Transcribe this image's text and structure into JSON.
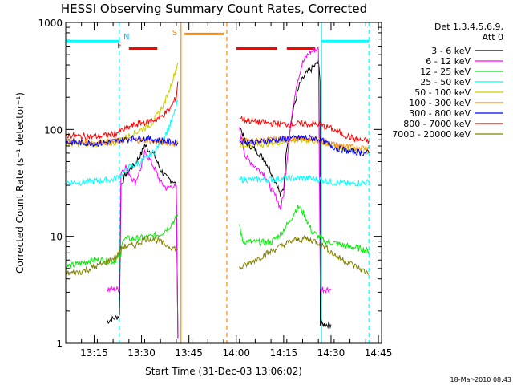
{
  "chart_data": {
    "type": "line",
    "title": "HESSI Observing Summary Count Rates, Corrected",
    "xlabel": "Start Time (31-Dec-03 13:06:02)",
    "ylabel": "Corrected Count Rate (s⁻¹ detector⁻¹)",
    "y_scale": "log",
    "ylim": [
      1,
      1000
    ],
    "xlim_minutes": [
      0,
      100
    ],
    "x_ticks": [
      {
        "m": 9,
        "label": "13:15"
      },
      {
        "m": 24,
        "label": "13:30"
      },
      {
        "m": 39,
        "label": "13:45"
      },
      {
        "m": 54,
        "label": "14:00"
      },
      {
        "m": 69,
        "label": "14:15"
      },
      {
        "m": 84,
        "label": "14:30"
      },
      {
        "m": 99,
        "label": "14:45"
      }
    ],
    "y_ticks": [
      {
        "v": 1,
        "label": "1"
      },
      {
        "v": 10,
        "label": "10"
      },
      {
        "v": 100,
        "label": "100"
      },
      {
        "v": 1000,
        "label": "1000"
      }
    ],
    "legend_header": [
      "Det 1,3,4,5,6,9,",
      "Att 0"
    ],
    "legend_position": "right",
    "series": [
      {
        "name": "3 - 6 keV",
        "color": "#000000",
        "segments": [
          [
            [
              13,
              1.6
            ],
            [
              17,
              1.8
            ],
            [
              17.5,
              30
            ],
            [
              19,
              38
            ],
            [
              22,
              48
            ],
            [
              24,
              60
            ],
            [
              25,
              72
            ],
            [
              26,
              65
            ],
            [
              28,
              58
            ],
            [
              30,
              42
            ],
            [
              32,
              35
            ],
            [
              34,
              33
            ],
            [
              35,
              30
            ],
            [
              35.5,
              1.1
            ]
          ],
          [
            [
              55,
              110
            ],
            [
              57,
              75
            ],
            [
              60,
              65
            ],
            [
              63,
              52
            ],
            [
              65,
              40
            ],
            [
              67,
              30
            ],
            [
              68,
              24
            ],
            [
              69,
              28
            ],
            [
              70,
              70
            ],
            [
              72,
              150
            ],
            [
              74,
              260
            ],
            [
              76,
              330
            ],
            [
              78,
              370
            ],
            [
              79,
              400
            ],
            [
              80,
              420
            ],
            [
              80.5,
              300
            ],
            [
              80.6,
              1.5
            ],
            [
              84,
              1.5
            ]
          ]
        ]
      },
      {
        "name": "6 - 12 keV",
        "color": "#ff00ff",
        "segments": [
          [
            [
              13,
              3.2
            ],
            [
              17,
              3.2
            ],
            [
              17.5,
              40
            ],
            [
              19,
              45
            ],
            [
              21,
              35
            ],
            [
              22,
              32
            ],
            [
              24,
              45
            ],
            [
              25,
              60
            ],
            [
              26,
              56
            ],
            [
              28,
              44
            ],
            [
              30,
              32
            ],
            [
              32,
              28
            ],
            [
              34,
              30
            ],
            [
              35,
              28
            ],
            [
              35.5,
              1.1
            ]
          ],
          [
            [
              55,
              100
            ],
            [
              57,
              55
            ],
            [
              60,
              45
            ],
            [
              63,
              38
            ],
            [
              65,
              28
            ],
            [
              67,
              22
            ],
            [
              68,
              18
            ],
            [
              69,
              25
            ],
            [
              71,
              100
            ],
            [
              73,
              260
            ],
            [
              75,
              420
            ],
            [
              77,
              520
            ],
            [
              79,
              560
            ],
            [
              80,
              560
            ],
            [
              80.6,
              3.2
            ],
            [
              84,
              3.2
            ]
          ]
        ]
      },
      {
        "name": "12 - 25 keV",
        "color": "#00ee00",
        "segments": [
          [
            [
              0,
              5.2
            ],
            [
              4,
              5.5
            ],
            [
              8,
              6.0
            ],
            [
              12,
              6.0
            ],
            [
              15,
              5.8
            ],
            [
              17.5,
              6.5
            ],
            [
              18,
              9.5
            ],
            [
              22,
              9.5
            ],
            [
              26,
              9.8
            ],
            [
              30,
              10.5
            ],
            [
              33,
              12.5
            ],
            [
              35,
              15
            ],
            [
              35.5,
              16
            ]
          ],
          [
            [
              55,
              13
            ],
            [
              56,
              9
            ],
            [
              60,
              8.8
            ],
            [
              65,
              8.8
            ],
            [
              68,
              10.5
            ],
            [
              71,
              14
            ],
            [
              73,
              18
            ],
            [
              74,
              19
            ],
            [
              76,
              15
            ],
            [
              78,
              11
            ],
            [
              80,
              10
            ],
            [
              82,
              9
            ],
            [
              86,
              8.5
            ],
            [
              90,
              8.0
            ],
            [
              94,
              7.6
            ],
            [
              96,
              7.2
            ]
          ]
        ]
      },
      {
        "name": "25 - 50 keV",
        "color": "#00ffff",
        "segments": [
          [
            [
              0,
              32
            ],
            [
              5,
              32
            ],
            [
              10,
              33
            ],
            [
              15,
              34
            ],
            [
              18,
              38
            ],
            [
              20,
              44
            ],
            [
              23,
              48
            ],
            [
              26,
              55
            ],
            [
              28,
              62
            ],
            [
              30,
              75
            ],
            [
              32,
              95
            ],
            [
              34,
              130
            ],
            [
              35.5,
              185
            ]
          ],
          [
            [
              55,
              34
            ],
            [
              60,
              34
            ],
            [
              65,
              34
            ],
            [
              70,
              35
            ],
            [
              75,
              35
            ],
            [
              80,
              34
            ],
            [
              85,
              32
            ],
            [
              90,
              31
            ],
            [
              95,
              32
            ],
            [
              96,
              32
            ]
          ]
        ]
      },
      {
        "name": "50 - 100 keV",
        "color": "#cccc00",
        "segments": [
          [
            [
              0,
              74
            ],
            [
              5,
              73
            ],
            [
              10,
              73
            ],
            [
              15,
              75
            ],
            [
              18,
              82
            ],
            [
              21,
              90
            ],
            [
              24,
              100
            ],
            [
              27,
              112
            ],
            [
              30,
              150
            ],
            [
              32,
              200
            ],
            [
              34,
              300
            ],
            [
              35.5,
              420
            ]
          ],
          [
            [
              55,
              70
            ],
            [
              60,
              72
            ],
            [
              65,
              74
            ],
            [
              70,
              78
            ],
            [
              75,
              80
            ],
            [
              80,
              78
            ],
            [
              85,
              70
            ],
            [
              90,
              64
            ],
            [
              96,
              63
            ]
          ]
        ]
      },
      {
        "name": "100 - 300 keV",
        "color": "#ff8c00",
        "segments": [
          [
            [
              0,
              78
            ],
            [
              5,
              76
            ],
            [
              10,
              75
            ],
            [
              15,
              77
            ],
            [
              18,
              79
            ],
            [
              22,
              80
            ],
            [
              26,
              79
            ],
            [
              30,
              76
            ],
            [
              34,
              74
            ],
            [
              35.5,
              73
            ]
          ],
          [
            [
              55,
              80
            ],
            [
              60,
              78
            ],
            [
              65,
              80
            ],
            [
              70,
              82
            ],
            [
              75,
              82
            ],
            [
              80,
              80
            ],
            [
              85,
              72
            ],
            [
              90,
              68
            ],
            [
              96,
              68
            ]
          ]
        ]
      },
      {
        "name": "300 - 800 keV",
        "color": "#0000ff",
        "segments": [
          [
            [
              0,
              76
            ],
            [
              5,
              75
            ],
            [
              10,
              74
            ],
            [
              15,
              77
            ],
            [
              18,
              80
            ],
            [
              22,
              83
            ],
            [
              26,
              82
            ],
            [
              30,
              79
            ],
            [
              34,
              76
            ],
            [
              35.5,
              75
            ]
          ],
          [
            [
              55,
              78
            ],
            [
              60,
              76
            ],
            [
              65,
              79
            ],
            [
              70,
              82
            ],
            [
              75,
              84
            ],
            [
              80,
              82
            ],
            [
              85,
              68
            ],
            [
              90,
              62
            ],
            [
              96,
              60
            ]
          ]
        ]
      },
      {
        "name": "800 - 7000 keV",
        "color": "#ff0000",
        "segments": [
          [
            [
              0,
              88
            ],
            [
              5,
              86
            ],
            [
              10,
              86
            ],
            [
              15,
              90
            ],
            [
              18,
              98
            ],
            [
              21,
              108
            ],
            [
              24,
              115
            ],
            [
              27,
              120
            ],
            [
              30,
              130
            ],
            [
              33,
              155
            ],
            [
              35,
              200
            ],
            [
              35.5,
              280
            ]
          ],
          [
            [
              55,
              130
            ],
            [
              57,
              122
            ],
            [
              60,
              118
            ],
            [
              65,
              114
            ],
            [
              70,
              112
            ],
            [
              75,
              113
            ],
            [
              80,
              112
            ],
            [
              84,
              102
            ],
            [
              88,
              90
            ],
            [
              92,
              80
            ],
            [
              96,
              78
            ]
          ]
        ]
      },
      {
        "name": "7000 - 20000 keV",
        "color": "#808000",
        "segments": [
          [
            [
              0,
              4.5
            ],
            [
              4,
              4.6
            ],
            [
              8,
              5.0
            ],
            [
              12,
              5.6
            ],
            [
              16,
              6.4
            ],
            [
              18,
              8.0
            ],
            [
              22,
              8.2
            ],
            [
              25,
              9.5
            ],
            [
              28,
              9.5
            ],
            [
              31,
              8.5
            ],
            [
              34,
              7.8
            ],
            [
              35.5,
              7.5
            ]
          ],
          [
            [
              55,
              5.0
            ],
            [
              58,
              5.6
            ],
            [
              62,
              6.5
            ],
            [
              66,
              7.5
            ],
            [
              70,
              8.6
            ],
            [
              73,
              9.3
            ],
            [
              76,
              9.5
            ],
            [
              79,
              9.0
            ],
            [
              82,
              8.0
            ],
            [
              86,
              6.4
            ],
            [
              90,
              5.6
            ],
            [
              94,
              4.8
            ],
            [
              96,
              4.5
            ]
          ]
        ]
      }
    ],
    "annotations": {
      "markers": [
        {
          "label": "N",
          "color": "#00bfff",
          "m": 17.5
        },
        {
          "label": "F",
          "color": "#ff0000",
          "m": 17.3
        },
        {
          "label": "S",
          "color": "#ff8c00",
          "m": 34.7
        }
      ],
      "bars": [
        {
          "name": "night",
          "color": "#00ffff",
          "ranges": [
            [
              0,
              17
            ],
            [
              81,
              96
            ]
          ],
          "y": 670
        },
        {
          "name": "flare",
          "color": "#ff0000",
          "ranges": [
            [
              20,
              29
            ],
            [
              54,
              67
            ],
            [
              70,
              79
            ]
          ],
          "y": 570
        },
        {
          "name": "saa",
          "color": "#ff8c00",
          "ranges": [
            [
              37.5,
              50
            ]
          ],
          "y": 780
        }
      ],
      "vlines": [
        {
          "m": 17,
          "color": "#00ffff",
          "style": "dashed"
        },
        {
          "m": 81,
          "color": "#00ffff",
          "style": "solid"
        },
        {
          "m": 96,
          "color": "#00ffff",
          "style": "dashed"
        },
        {
          "m": 36.5,
          "color": "#ff8c00",
          "style": "solid"
        },
        {
          "m": 51,
          "color": "#ff8c00",
          "style": "dashed"
        }
      ]
    },
    "timestamp": "18-Mar-2010 08:43"
  }
}
